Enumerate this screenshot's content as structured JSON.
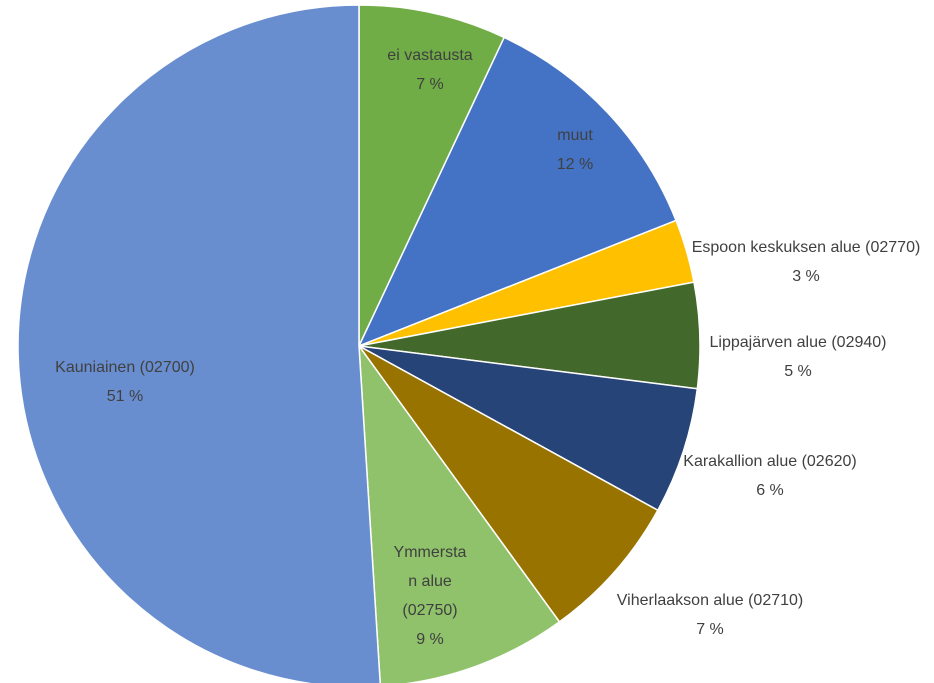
{
  "chart_data": {
    "type": "pie",
    "categories": [
      "ei vastausta",
      "muut",
      "Espoon keskuksen alue (02770)",
      "Lippajärven alue (02940)",
      "Karakallion alue (02620)",
      "Viherlaakson alue (02710)",
      "Ymmerstan alue (02750)",
      "Kauniainen (02700)"
    ],
    "values": [
      7,
      12,
      3,
      5,
      6,
      7,
      9,
      51
    ],
    "value_labels": [
      "7 %",
      "12 %",
      "3 %",
      "5 %",
      "6 %",
      "7 %",
      "9 %",
      "51 %"
    ],
    "colors": [
      "#70ad47",
      "#4472c4",
      "#ffc000",
      "#43682b",
      "#264478",
      "#997300",
      "#8fc26b",
      "#698ed0"
    ]
  }
}
